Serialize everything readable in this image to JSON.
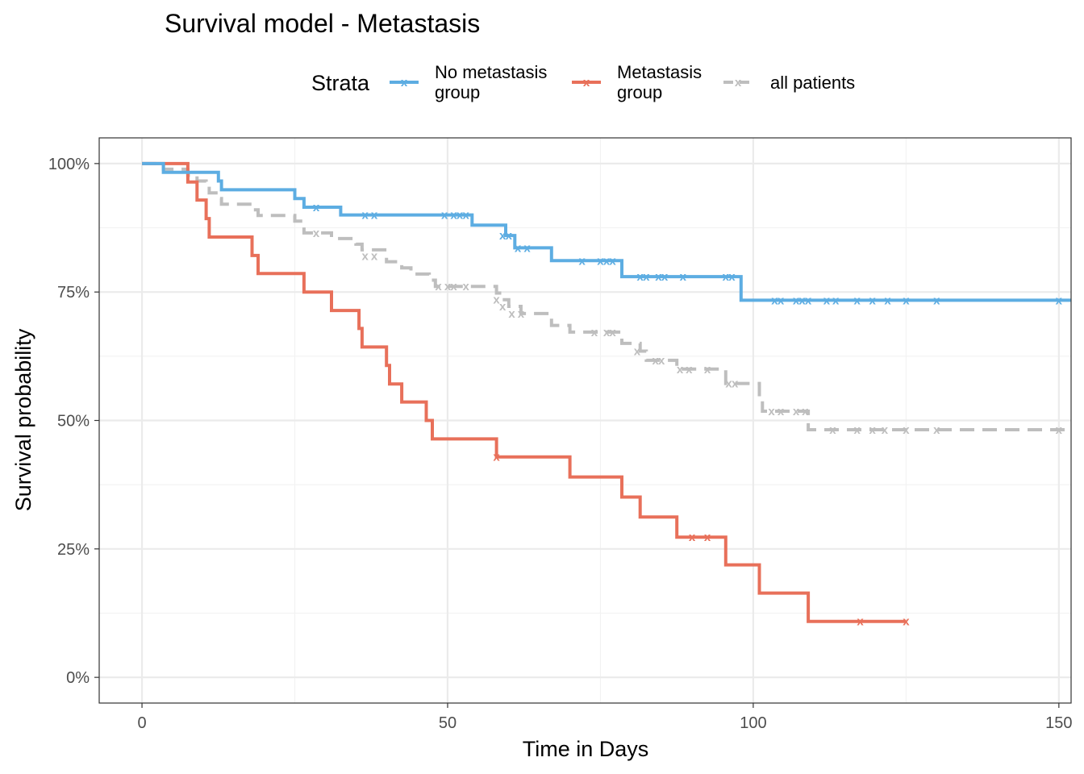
{
  "chart_data": {
    "type": "line",
    "subtype": "kaplan-meier step",
    "title": "Survival model - Metastasis",
    "xlabel": "Time in Days",
    "ylabel": "Survival probability",
    "xlim": [
      -7,
      152
    ],
    "ylim": [
      -0.05,
      1.05
    ],
    "x_ticks": [
      0,
      50,
      100,
      150
    ],
    "x_tick_labels": [
      "0",
      "50",
      "100",
      "150"
    ],
    "y_ticks": [
      0,
      0.25,
      0.5,
      0.75,
      1.0
    ],
    "y_tick_labels": [
      "0%",
      "25%",
      "50%",
      "75%",
      "100%"
    ],
    "grid": true,
    "legend": {
      "title": "Strata",
      "position": "top",
      "entries": [
        {
          "line1": "No metastasis",
          "line2": "group"
        },
        {
          "line1": "Metastasis",
          "line2": "group"
        },
        {
          "line1": "all patients",
          "line2": ""
        }
      ]
    },
    "censor_marker": "x",
    "series": [
      {
        "label_index": 0,
        "color": "#5DADE2",
        "dashed": false,
        "steps": [
          [
            0,
            1.0
          ],
          [
            3.5,
            0.983
          ],
          [
            12.5,
            0.966
          ],
          [
            13,
            0.949
          ],
          [
            25,
            0.932
          ],
          [
            26.5,
            0.915
          ],
          [
            32.5,
            0.9
          ],
          [
            54,
            0.88
          ],
          [
            59.5,
            0.86
          ],
          [
            61,
            0.836
          ],
          [
            67,
            0.811
          ],
          [
            78.5,
            0.78
          ],
          [
            98,
            0.734
          ],
          [
            152,
            0.734
          ]
        ],
        "censored": [
          [
            28.5,
            0.915
          ],
          [
            36.5,
            0.9
          ],
          [
            38,
            0.9
          ],
          [
            49.5,
            0.9
          ],
          [
            51,
            0.9
          ],
          [
            52,
            0.9
          ],
          [
            53,
            0.9
          ],
          [
            59,
            0.86
          ],
          [
            60,
            0.86
          ],
          [
            61.5,
            0.836
          ],
          [
            63,
            0.836
          ],
          [
            72,
            0.811
          ],
          [
            75,
            0.811
          ],
          [
            76,
            0.811
          ],
          [
            77,
            0.811
          ],
          [
            81.5,
            0.78
          ],
          [
            82.5,
            0.78
          ],
          [
            84.5,
            0.78
          ],
          [
            85.5,
            0.78
          ],
          [
            88.5,
            0.78
          ],
          [
            95.5,
            0.78
          ],
          [
            96.5,
            0.78
          ],
          [
            103.5,
            0.734
          ],
          [
            104.5,
            0.734
          ],
          [
            107,
            0.734
          ],
          [
            108,
            0.734
          ],
          [
            109,
            0.734
          ],
          [
            112,
            0.734
          ],
          [
            113.5,
            0.734
          ],
          [
            117,
            0.734
          ],
          [
            119.5,
            0.734
          ],
          [
            122,
            0.734
          ],
          [
            125,
            0.734
          ],
          [
            130,
            0.734
          ],
          [
            150,
            0.734
          ]
        ]
      },
      {
        "label_index": 1,
        "color": "#E8705A",
        "dashed": false,
        "steps": [
          [
            0,
            1.0
          ],
          [
            7.5,
            0.964
          ],
          [
            9,
            0.929
          ],
          [
            10.5,
            0.893
          ],
          [
            11,
            0.857
          ],
          [
            18,
            0.821
          ],
          [
            19,
            0.786
          ],
          [
            26.5,
            0.75
          ],
          [
            31,
            0.714
          ],
          [
            35.5,
            0.679
          ],
          [
            36,
            0.643
          ],
          [
            40,
            0.607
          ],
          [
            40.5,
            0.571
          ],
          [
            42.5,
            0.536
          ],
          [
            46.5,
            0.5
          ],
          [
            47.5,
            0.464
          ],
          [
            58,
            0.429
          ],
          [
            70,
            0.39
          ],
          [
            78.5,
            0.351
          ],
          [
            81.5,
            0.312
          ],
          [
            87.5,
            0.273
          ],
          [
            95.5,
            0.219
          ],
          [
            101,
            0.164
          ],
          [
            109,
            0.109
          ],
          [
            125,
            0.109
          ]
        ],
        "censored": [
          [
            58,
            0.429
          ],
          [
            90,
            0.273
          ],
          [
            92.5,
            0.273
          ],
          [
            117.5,
            0.109
          ],
          [
            125,
            0.109
          ]
        ]
      },
      {
        "label_index": 2,
        "color": "#BEBEBE",
        "dashed": true,
        "steps": [
          [
            0,
            1.0
          ],
          [
            3.5,
            0.989
          ],
          [
            7.5,
            0.977
          ],
          [
            9,
            0.966
          ],
          [
            10.5,
            0.955
          ],
          [
            11,
            0.943
          ],
          [
            12.5,
            0.932
          ],
          [
            13,
            0.921
          ],
          [
            18,
            0.91
          ],
          [
            19,
            0.899
          ],
          [
            25,
            0.888
          ],
          [
            26.5,
            0.865
          ],
          [
            28.5,
            0.865
          ],
          [
            31,
            0.854
          ],
          [
            35,
            0.843
          ],
          [
            36,
            0.832
          ],
          [
            40,
            0.809
          ],
          [
            42.5,
            0.797
          ],
          [
            44,
            0.785
          ],
          [
            47,
            0.773
          ],
          [
            48,
            0.761
          ],
          [
            58,
            0.748
          ],
          [
            59,
            0.735
          ],
          [
            60,
            0.722
          ],
          [
            62,
            0.708
          ],
          [
            67,
            0.685
          ],
          [
            70,
            0.672
          ],
          [
            78.5,
            0.65
          ],
          [
            81.5,
            0.635
          ],
          [
            82.5,
            0.617
          ],
          [
            87.5,
            0.6
          ],
          [
            95.5,
            0.572
          ],
          [
            101,
            0.545
          ],
          [
            101.5,
            0.518
          ],
          [
            109,
            0.482
          ],
          [
            152,
            0.482
          ]
        ],
        "censored": [
          [
            28.5,
            0.865
          ],
          [
            36.5,
            0.82
          ],
          [
            38,
            0.82
          ],
          [
            48.5,
            0.761
          ],
          [
            50,
            0.761
          ],
          [
            51,
            0.761
          ],
          [
            53,
            0.761
          ],
          [
            58,
            0.735
          ],
          [
            59,
            0.722
          ],
          [
            60.5,
            0.708
          ],
          [
            62,
            0.708
          ],
          [
            74,
            0.672
          ],
          [
            76,
            0.672
          ],
          [
            77,
            0.672
          ],
          [
            81,
            0.635
          ],
          [
            84,
            0.617
          ],
          [
            85,
            0.617
          ],
          [
            88,
            0.6
          ],
          [
            89.5,
            0.6
          ],
          [
            92.5,
            0.6
          ],
          [
            96,
            0.572
          ],
          [
            97,
            0.572
          ],
          [
            103,
            0.518
          ],
          [
            104.5,
            0.518
          ],
          [
            107,
            0.518
          ],
          [
            108.5,
            0.518
          ],
          [
            113,
            0.482
          ],
          [
            117,
            0.482
          ],
          [
            119.5,
            0.482
          ],
          [
            121.5,
            0.482
          ],
          [
            125,
            0.482
          ],
          [
            130,
            0.482
          ],
          [
            150,
            0.482
          ]
        ]
      }
    ]
  }
}
